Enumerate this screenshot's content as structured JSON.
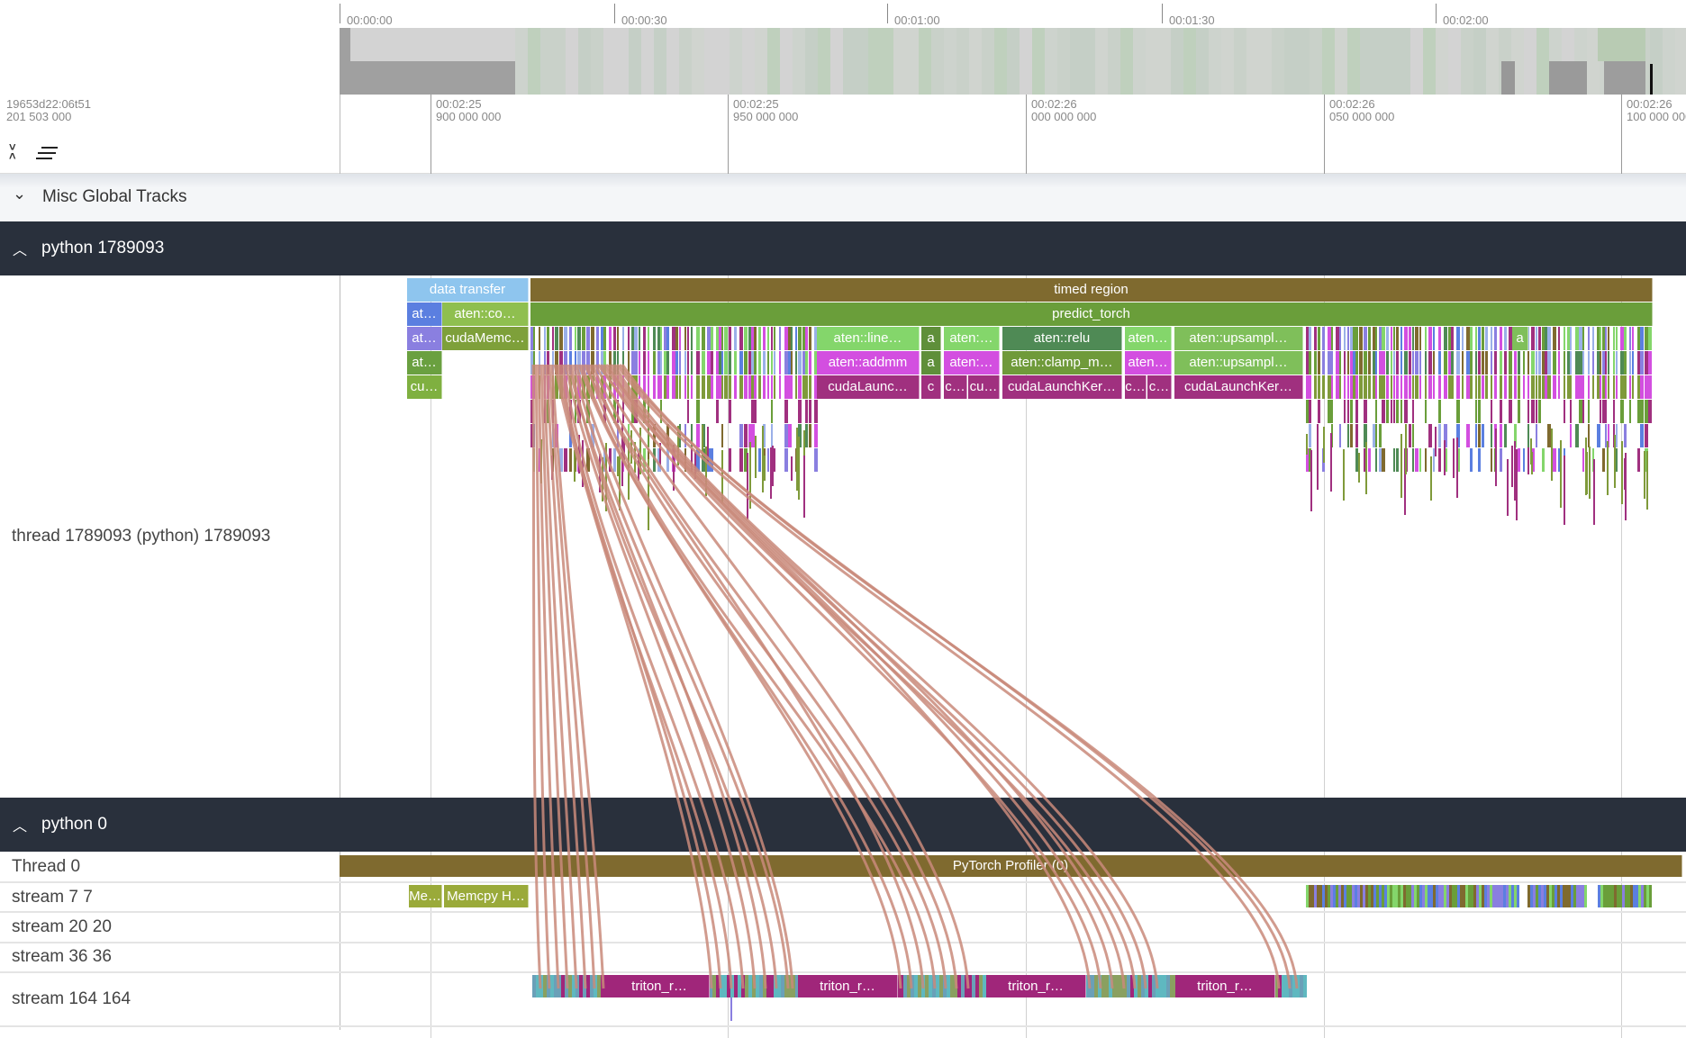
{
  "overview": {
    "ticks": [
      "00:00:00",
      "00:00:30",
      "00:01:00",
      "00:01:30",
      "00:02:00"
    ]
  },
  "ruler": {
    "origin_line1": "19653d22:06t51",
    "origin_line2": "201 503 000",
    "ticks": [
      {
        "l1": "00:02:25",
        "l2": "900 000 000"
      },
      {
        "l1": "00:02:25",
        "l2": "950 000 000"
      },
      {
        "l1": "00:02:26",
        "l2": "000 000 000"
      },
      {
        "l1": "00:02:26",
        "l2": "050 000 000"
      },
      {
        "l1": "00:02:26",
        "l2": "100 000 000"
      }
    ]
  },
  "toolbar": {
    "collapse_icon": "collapse-all-icon",
    "filter_icon": "list-filter-icon"
  },
  "groups": {
    "misc": {
      "title": "Misc Global Tracks",
      "icon": "chevron-down-icon"
    },
    "proc1": {
      "title": "python 1789093",
      "icon": "chevron-up-icon",
      "thread_label": "thread 1789093 (python) 1789093"
    },
    "proc0": {
      "title": "python 0",
      "icon": "chevron-up-icon"
    }
  },
  "tracks": [
    "Thread 0",
    "stream 7 7",
    "stream 20 20",
    "stream 36 36",
    "stream 164 164"
  ],
  "slices": {
    "row0": [
      "data transfer",
      "timed region"
    ],
    "row1": [
      "at…",
      "aten::co…",
      "predict_torch"
    ],
    "row2": [
      "at…",
      "cudaMemc…",
      "aten::line…",
      "a",
      "aten:…",
      "aten::relu",
      "aten…",
      "aten::upsampl…",
      "a"
    ],
    "row3": [
      "at…",
      "aten::addmm",
      "a",
      "aten:…",
      "aten::clamp_m…",
      "aten…",
      "aten::upsampl…"
    ],
    "row4": [
      "cu…",
      "cudaLaunc…",
      "c",
      "c…",
      "cu…",
      "cudaLaunchKer…",
      "c…",
      "c…",
      "cudaLaunchKer…"
    ],
    "thread0": "PyTorch Profiler (0)",
    "stream7": [
      "Me…",
      "Memcpy H…"
    ],
    "stream164": [
      "triton_r…",
      "triton_r…",
      "triton_r…",
      "triton_r…"
    ]
  },
  "colors": {
    "header_bg": "#29303c",
    "flow_arrow": "#c98a7a",
    "timed_region": "#7f6a2f",
    "predict_torch": "#6a9e3a",
    "triton": "#a0267a"
  }
}
